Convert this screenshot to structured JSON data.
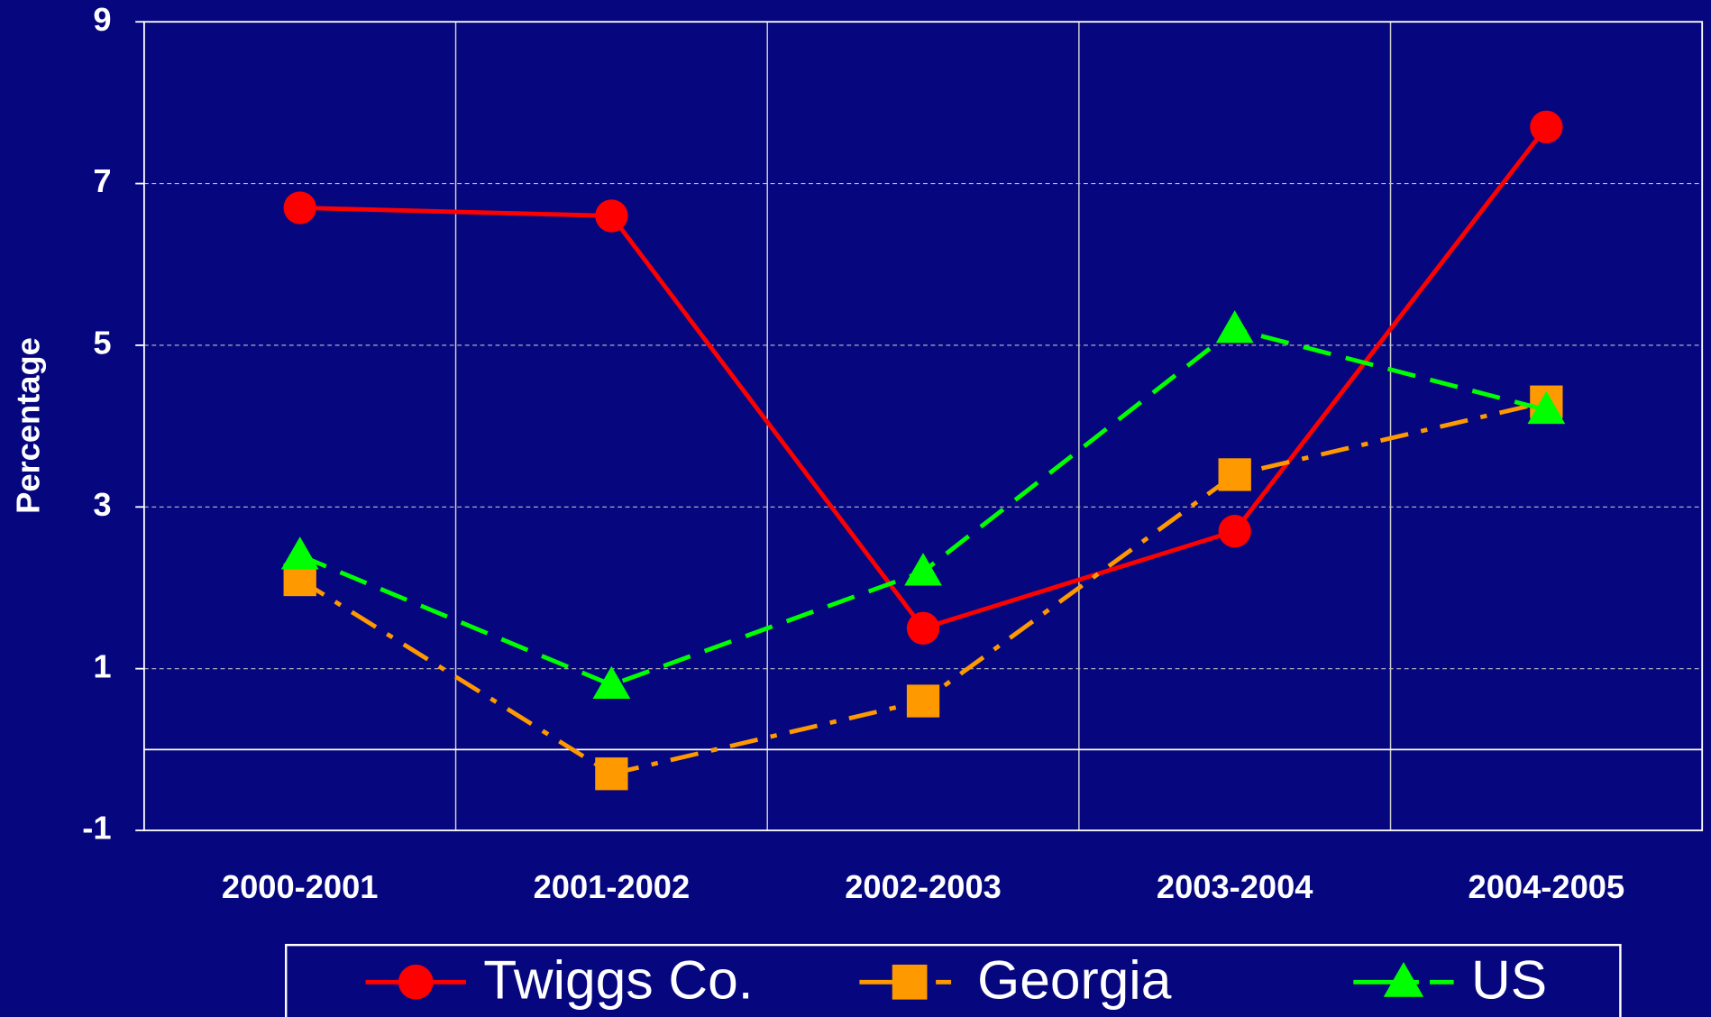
{
  "chart_data": {
    "type": "line",
    "y_label": "Percentage",
    "categories": [
      "2000-2001",
      "2001-2002",
      "2002-2003",
      "2003-2004",
      "2004-2005"
    ],
    "series": [
      {
        "name": "Twiggs Co.",
        "color": "#ff0000",
        "marker": "circle",
        "dash": "solid",
        "values": [
          6.7,
          6.6,
          1.5,
          2.7,
          7.7
        ]
      },
      {
        "name": "Georgia",
        "color": "#ff9900",
        "marker": "square",
        "dash": "dashdot",
        "values": [
          2.1,
          -0.3,
          0.6,
          3.4,
          4.3
        ]
      },
      {
        "name": "US",
        "color": "#00ff00",
        "marker": "triangle",
        "dash": "dashed",
        "values": [
          2.4,
          0.8,
          2.2,
          5.2,
          4.2
        ]
      }
    ],
    "ylim": [
      -1,
      9
    ],
    "yticks": [
      9,
      7,
      5,
      3,
      1,
      -1
    ],
    "grid": true,
    "legend": "bottom"
  }
}
